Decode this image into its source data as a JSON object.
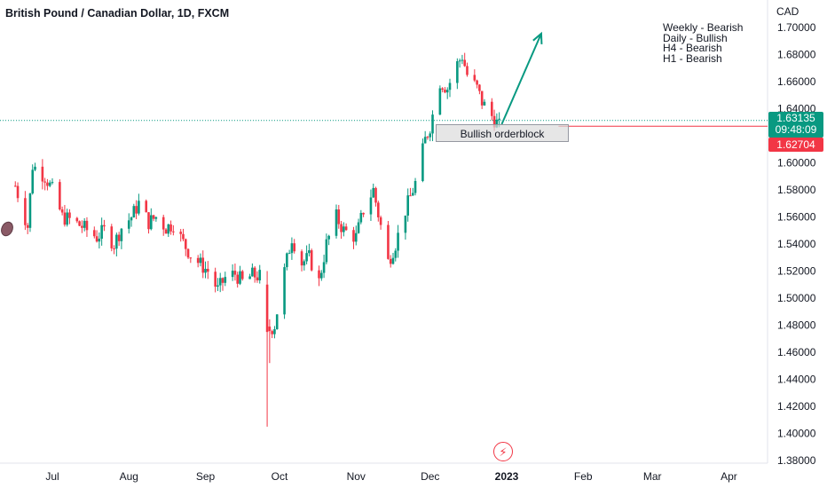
{
  "title": "British Pound / Canadian Dollar, 1D, FXCM",
  "currency": "CAD",
  "notes": [
    "Weekly - Bearish",
    "Daily - Bullish",
    "H4 - Bearish",
    "H1 - Bearish"
  ],
  "orderblock_label": "Bullish orderblock",
  "price_tags": {
    "last_price": "1.63135",
    "countdown": "09:48:09",
    "line_price": "1.62704"
  },
  "colors": {
    "up": "#089981",
    "down": "#f23645",
    "arrow": "#089981"
  },
  "icons": {
    "year_marker": "lightning-icon"
  },
  "chart_data": {
    "type": "candlestick",
    "title": "British Pound / Canadian Dollar, 1D, FXCM",
    "ylabel": "CAD",
    "ylim": [
      1.37,
      1.715
    ],
    "yticks": [
      "1.38000",
      "1.40000",
      "1.42000",
      "1.44000",
      "1.46000",
      "1.48000",
      "1.50000",
      "1.52000",
      "1.54000",
      "1.56000",
      "1.58000",
      "1.60000",
      "1.62000",
      "1.64000",
      "1.66000",
      "1.68000",
      "1.70000"
    ],
    "xticks": [
      {
        "label": "Jul",
        "date": "2022-07-01"
      },
      {
        "label": "Aug",
        "date": "2022-08-01"
      },
      {
        "label": "Sep",
        "date": "2022-09-01"
      },
      {
        "label": "Oct",
        "date": "2022-10-01"
      },
      {
        "label": "Nov",
        "date": "2022-11-01"
      },
      {
        "label": "Dec",
        "date": "2022-12-01"
      },
      {
        "label": "2023",
        "date": "2023-01-01"
      },
      {
        "label": "Feb",
        "date": "2023-02-01"
      },
      {
        "label": "Mar",
        "date": "2023-03-01"
      },
      {
        "label": "Apr",
        "date": "2023-04-01"
      }
    ],
    "path": [
      [
        "2022-06-16",
        1.583
      ],
      [
        "2022-06-21",
        1.553
      ],
      [
        "2022-06-23",
        1.598
      ],
      [
        "2022-06-28",
        1.59
      ],
      [
        "2022-07-01",
        1.58
      ],
      [
        "2022-07-05",
        1.56
      ],
      [
        "2022-07-08",
        1.558
      ],
      [
        "2022-07-13",
        1.553
      ],
      [
        "2022-07-19",
        1.545
      ],
      [
        "2022-07-22",
        1.55
      ],
      [
        "2022-07-26",
        1.54
      ],
      [
        "2022-07-29",
        1.552
      ],
      [
        "2022-08-02",
        1.56
      ],
      [
        "2022-08-05",
        1.57
      ],
      [
        "2022-08-09",
        1.556
      ],
      [
        "2022-08-12",
        1.56
      ],
      [
        "2022-08-16",
        1.552
      ],
      [
        "2022-08-19",
        1.555
      ],
      [
        "2022-08-23",
        1.541
      ],
      [
        "2022-08-26",
        1.532
      ],
      [
        "2022-08-30",
        1.525
      ],
      [
        "2022-09-02",
        1.52
      ],
      [
        "2022-09-06",
        1.506
      ],
      [
        "2022-09-09",
        1.515
      ],
      [
        "2022-09-13",
        1.518
      ],
      [
        "2022-09-16",
        1.512
      ],
      [
        "2022-09-20",
        1.517
      ],
      [
        "2022-09-23",
        1.516
      ],
      [
        "2022-09-26",
        1.475
      ],
      [
        "2022-09-29",
        1.48
      ],
      [
        "2022-10-03",
        1.52
      ],
      [
        "2022-10-06",
        1.545
      ],
      [
        "2022-10-10",
        1.526
      ],
      [
        "2022-10-13",
        1.53
      ],
      [
        "2022-10-17",
        1.512
      ],
      [
        "2022-10-20",
        1.54
      ],
      [
        "2022-10-24",
        1.56
      ],
      [
        "2022-10-27",
        1.55
      ],
      [
        "2022-11-01",
        1.545
      ],
      [
        "2022-11-04",
        1.565
      ],
      [
        "2022-11-08",
        1.58
      ],
      [
        "2022-11-10",
        1.562
      ],
      [
        "2022-11-14",
        1.527
      ],
      [
        "2022-11-17",
        1.54
      ],
      [
        "2022-11-21",
        1.565
      ],
      [
        "2022-11-25",
        1.585
      ],
      [
        "2022-11-29",
        1.617
      ],
      [
        "2022-12-01",
        1.627
      ],
      [
        "2022-12-05",
        1.66
      ],
      [
        "2022-12-08",
        1.655
      ],
      [
        "2022-12-12",
        1.673
      ],
      [
        "2022-12-14",
        1.679
      ],
      [
        "2022-12-16",
        1.665
      ],
      [
        "2022-12-20",
        1.655
      ],
      [
        "2022-12-22",
        1.645
      ],
      [
        "2022-12-27",
        1.632
      ],
      [
        "2022-12-29",
        1.627
      ]
    ],
    "orderblock": {
      "x0": "2022-11-30",
      "x1": "2023-01-22",
      "y0": 1.6125,
      "y1": 1.6275
    },
    "last_price": 1.63135,
    "line_price": 1.62704,
    "projection": {
      "from": [
        "2022-12-30",
        1.6285
      ],
      "to": [
        "2023-01-15",
        1.6955
      ]
    }
  }
}
